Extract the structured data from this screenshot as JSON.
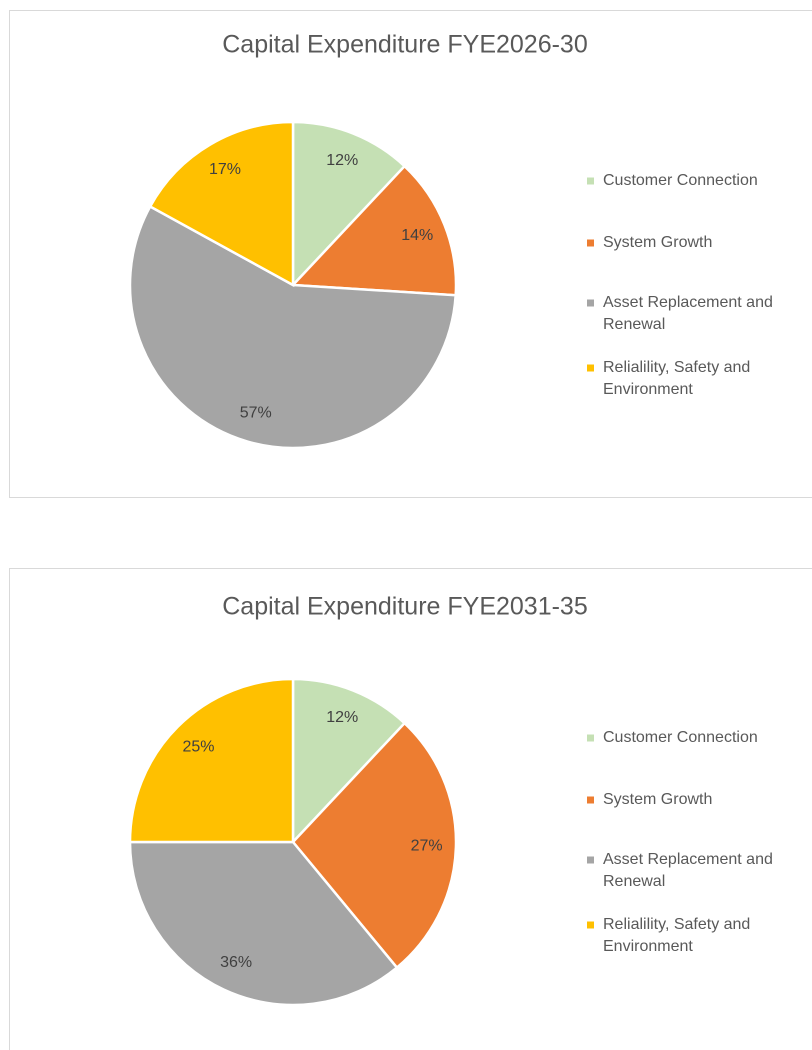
{
  "chart_data": [
    {
      "type": "pie",
      "title": "Capital Expenditure FYE2026-30",
      "categories": [
        "Customer Connection",
        "System Growth",
        "Asset Replacement and Renewal",
        "Relialility, Safety and Environment"
      ],
      "values": [
        12,
        14,
        57,
        17
      ],
      "value_labels": [
        "12%",
        "14%",
        "57%",
        "17%"
      ],
      "colors": [
        "#c5e0b4",
        "#ed7d31",
        "#a5a5a5",
        "#ffc000"
      ],
      "legend": "right"
    },
    {
      "type": "pie",
      "title": "Capital Expenditure FYE2031-35",
      "categories": [
        "Customer Connection",
        "System Growth",
        "Asset Replacement and Renewal",
        "Relialility, Safety and Environment"
      ],
      "values": [
        12,
        27,
        36,
        25
      ],
      "value_labels": [
        "12%",
        "27%",
        "36%",
        "25%"
      ],
      "colors": [
        "#c5e0b4",
        "#ed7d31",
        "#a5a5a5",
        "#ffc000"
      ],
      "legend": "right"
    }
  ]
}
